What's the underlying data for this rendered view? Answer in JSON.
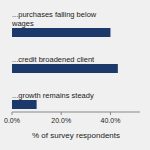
{
  "chart_data": {
    "type": "bar",
    "orientation": "horizontal",
    "categories": [
      "...growth remains steady",
      "...credit broadened client",
      "...purchases falling below\nwages"
    ],
    "values": [
      10,
      43,
      40
    ],
    "color": "#1b3a6b",
    "xlabel": "% of survey respondents",
    "xlim": [
      0,
      52
    ],
    "xticks": [
      {
        "value": 0,
        "label": "0.0%"
      },
      {
        "value": 20,
        "label": "20.0%"
      },
      {
        "value": 40,
        "label": "40.0%"
      }
    ]
  }
}
